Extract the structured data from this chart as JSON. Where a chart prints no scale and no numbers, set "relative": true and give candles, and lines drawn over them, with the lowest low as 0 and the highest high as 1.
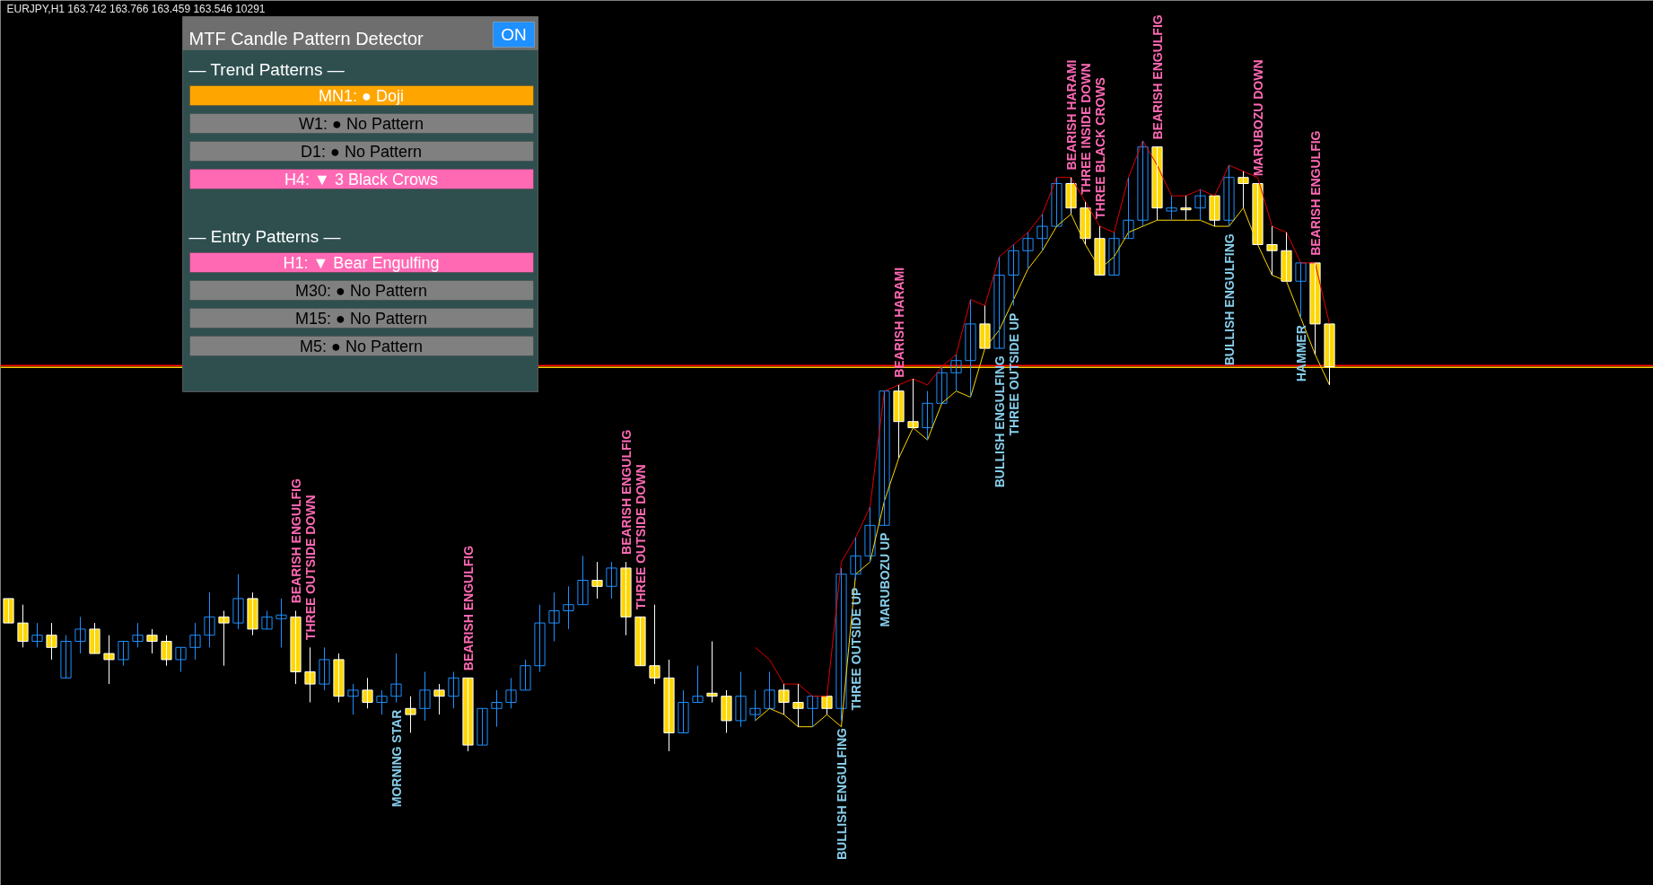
{
  "chart_data": [
    {
      "type": "candlestick",
      "title": "EURJPY,H1  163.742 163.766 163.459 163.546  10291",
      "relative": true,
      "categories": [
        null,
        null,
        null,
        null,
        null,
        null,
        null,
        null,
        null,
        null,
        null,
        null,
        null,
        null,
        null,
        null,
        null,
        null,
        null,
        null,
        null,
        null,
        null,
        null,
        null,
        null,
        null,
        null,
        null,
        null,
        null,
        null,
        null,
        null,
        null,
        null,
        null,
        null,
        null,
        null,
        null,
        null,
        null,
        null,
        null,
        null,
        null,
        null,
        null,
        null,
        null,
        null,
        null,
        null,
        null,
        null,
        null,
        null,
        null,
        null,
        null,
        null,
        null,
        null,
        null,
        null,
        null,
        null,
        null,
        null,
        null,
        null,
        null,
        null,
        null,
        null,
        null,
        null,
        null,
        null,
        null,
        null,
        null,
        null,
        null,
        null,
        null,
        null,
        null,
        null,
        null,
        null,
        null
      ],
      "colors": [
        "#ffd700",
        "#ffd700",
        "#1e90ff",
        "#ffd700",
        "#1e90ff",
        "#1e90ff",
        "#ffd700",
        "#ffd700",
        "#1e90ff",
        "#1e90ff",
        "#ffd700",
        "#ffd700",
        "#1e90ff",
        "#1e90ff",
        "#1e90ff",
        "#ffd700",
        "#1e90ff",
        "#ffd700",
        "#1e90ff",
        "#1e90ff",
        "#ffd700",
        "#ffd700",
        "#1e90ff",
        "#ffd700",
        "#1e90ff",
        "#ffd700",
        "#1e90ff",
        "#1e90ff",
        "#ffd700",
        "#1e90ff",
        "#ffd700",
        "#1e90ff",
        "#ffd700",
        "#1e90ff",
        "#1e90ff",
        "#1e90ff",
        "#1e90ff",
        "#1e90ff",
        "#1e90ff",
        "#1e90ff",
        "#1e90ff",
        "#ffd700",
        "#1e90ff",
        "#ffd700",
        "#ffd700",
        "#ffd700",
        "#ffd700",
        "#1e90ff",
        "#1e90ff",
        "#ffd700",
        "#ffd700",
        "#1e90ff",
        "#1e90ff",
        "#1e90ff",
        "#ffd700",
        "#ffd700",
        "#1e90ff",
        "#ffd700",
        "#1e90ff",
        "#1e90ff",
        "#1e90ff",
        "#1e90ff",
        "#ffd700",
        "#ffd700",
        "#1e90ff",
        "#1e90ff",
        "#1e90ff",
        "#1e90ff",
        "#ffd700",
        "#1e90ff",
        "#1e90ff",
        "#1e90ff",
        "#1e90ff",
        "#1e90ff",
        "#ffd700",
        "#ffd700",
        "#ffd700",
        "#1e90ff",
        "#1e90ff",
        "#1e90ff",
        "#ffd700",
        "#1e90ff",
        "#ffd700",
        "#1e90ff",
        "#ffd700",
        "#1e90ff",
        "#ffd700",
        "#ffd700",
        "#ffd700",
        "#ffd700",
        "#1e90ff",
        "#ffd700",
        "#ffd700"
      ],
      "ohlc": [
        [
          0.25,
          0.25,
          0.21,
          0.21
        ],
        [
          0.21,
          0.24,
          0.17,
          0.18
        ],
        [
          0.18,
          0.21,
          0.17,
          0.19
        ],
        [
          0.19,
          0.21,
          0.15,
          0.17
        ],
        [
          0.12,
          0.19,
          0.12,
          0.18
        ],
        [
          0.18,
          0.22,
          0.16,
          0.2
        ],
        [
          0.2,
          0.21,
          0.16,
          0.16
        ],
        [
          0.16,
          0.19,
          0.11,
          0.15
        ],
        [
          0.15,
          0.18,
          0.14,
          0.18
        ],
        [
          0.18,
          0.21,
          0.17,
          0.19
        ],
        [
          0.19,
          0.2,
          0.16,
          0.18
        ],
        [
          0.18,
          0.19,
          0.14,
          0.15
        ],
        [
          0.15,
          0.17,
          0.13,
          0.17
        ],
        [
          0.17,
          0.21,
          0.15,
          0.19
        ],
        [
          0.19,
          0.26,
          0.17,
          0.22
        ],
        [
          0.22,
          0.23,
          0.14,
          0.21
        ],
        [
          0.21,
          0.29,
          0.2,
          0.25
        ],
        [
          0.25,
          0.26,
          0.19,
          0.2
        ],
        [
          0.2,
          0.23,
          0.2,
          0.22
        ],
        [
          0.217,
          0.25,
          0.17,
          0.223
        ],
        [
          0.22,
          0.23,
          0.11,
          0.13
        ],
        [
          0.13,
          0.17,
          0.08,
          0.11
        ],
        [
          0.11,
          0.17,
          0.1,
          0.15
        ],
        [
          0.15,
          0.16,
          0.08,
          0.09
        ],
        [
          0.09,
          0.11,
          0.06,
          0.1
        ],
        [
          0.1,
          0.12,
          0.07,
          0.08
        ],
        [
          0.08,
          0.1,
          0.06,
          0.09
        ],
        [
          0.09,
          0.16,
          0.08,
          0.11
        ],
        [
          0.07,
          0.09,
          0.03,
          0.06
        ],
        [
          0.07,
          0.13,
          0.05,
          0.1
        ],
        [
          0.1,
          0.11,
          0.06,
          0.09
        ],
        [
          0.09,
          0.13,
          0.07,
          0.12
        ],
        [
          0.12,
          0.12,
          0.0,
          0.01
        ],
        [
          0.01,
          0.07,
          0.01,
          0.07
        ],
        [
          0.07,
          0.1,
          0.04,
          0.08
        ],
        [
          0.08,
          0.12,
          0.07,
          0.1
        ],
        [
          0.1,
          0.15,
          0.1,
          0.14
        ],
        [
          0.14,
          0.24,
          0.13,
          0.21
        ],
        [
          0.21,
          0.26,
          0.18,
          0.23
        ],
        [
          0.23,
          0.27,
          0.2,
          0.24
        ],
        [
          0.24,
          0.32,
          0.24,
          0.28
        ],
        [
          0.28,
          0.31,
          0.25,
          0.27
        ],
        [
          0.27,
          0.31,
          0.25,
          0.3
        ],
        [
          0.3,
          0.31,
          0.19,
          0.22
        ],
        [
          0.22,
          0.22,
          0.14,
          0.14
        ],
        [
          0.14,
          0.24,
          0.11,
          0.12
        ],
        [
          0.12,
          0.15,
          0.0,
          0.03
        ],
        [
          0.03,
          0.1,
          0.03,
          0.08
        ],
        [
          0.08,
          0.14,
          0.08,
          0.09
        ],
        [
          0.095,
          0.18,
          0.08,
          0.09
        ],
        [
          0.09,
          0.1,
          0.03,
          0.05
        ],
        [
          0.05,
          0.13,
          0.04,
          0.09
        ],
        [
          0.06,
          0.1,
          0.05,
          0.07
        ],
        [
          0.07,
          0.13,
          0.07,
          0.1
        ],
        [
          0.1,
          0.11,
          0.06,
          0.08
        ],
        [
          0.08,
          0.11,
          0.04,
          0.07
        ],
        [
          0.07,
          0.09,
          0.04,
          0.09
        ],
        [
          0.09,
          0.09,
          0.06,
          0.07
        ],
        [
          0.07,
          0.3,
          0.05,
          0.29
        ],
        [
          0.29,
          0.35,
          0.28,
          0.32
        ],
        [
          0.32,
          0.4,
          0.31,
          0.37
        ],
        [
          0.37,
          0.59,
          0.37,
          0.59
        ],
        [
          0.59,
          0.6,
          0.48,
          0.54
        ],
        [
          0.54,
          0.61,
          0.53,
          0.53
        ],
        [
          0.53,
          0.59,
          0.51,
          0.57
        ],
        [
          0.57,
          0.63,
          0.57,
          0.62
        ],
        [
          0.62,
          0.65,
          0.59,
          0.64
        ],
        [
          0.64,
          0.74,
          0.58,
          0.7
        ],
        [
          0.7,
          0.73,
          0.66,
          0.66
        ],
        [
          0.66,
          0.81,
          0.66,
          0.78
        ],
        [
          0.78,
          0.83,
          0.73,
          0.82
        ],
        [
          0.82,
          0.85,
          0.79,
          0.84
        ],
        [
          0.84,
          0.88,
          0.82,
          0.86
        ],
        [
          0.86,
          0.94,
          0.86,
          0.93
        ],
        [
          0.93,
          0.94,
          0.88,
          0.89
        ],
        [
          0.89,
          0.9,
          0.83,
          0.84
        ],
        [
          0.84,
          0.86,
          0.78,
          0.78
        ],
        [
          0.78,
          0.85,
          0.78,
          0.84
        ],
        [
          0.84,
          0.94,
          0.84,
          0.87
        ],
        [
          0.87,
          1.0,
          0.86,
          0.99
        ],
        [
          0.99,
          0.99,
          0.87,
          0.89
        ],
        [
          0.885,
          0.91,
          0.87,
          0.89
        ],
        [
          0.89,
          0.91,
          0.87,
          0.887
        ],
        [
          0.89,
          0.92,
          0.87,
          0.91
        ],
        [
          0.91,
          0.91,
          0.86,
          0.87
        ],
        [
          0.87,
          0.96,
          0.86,
          0.94
        ],
        [
          0.94,
          0.95,
          0.89,
          0.93
        ],
        [
          0.93,
          0.93,
          0.83,
          0.83
        ],
        [
          0.83,
          0.86,
          0.78,
          0.82
        ],
        [
          0.82,
          0.85,
          0.77,
          0.77
        ],
        [
          0.77,
          0.8,
          0.71,
          0.8
        ],
        [
          0.8,
          0.8,
          0.65,
          0.7
        ],
        [
          0.7,
          0.7,
          0.6,
          0.63
        ]
      ],
      "value_labels": [
        null,
        null,
        null,
        null,
        null,
        null,
        null,
        null,
        null,
        null,
        null,
        null,
        null,
        null,
        null,
        null,
        null,
        null,
        null,
        null,
        "BEARISH ENGULFIG",
        "THREE OUTSIDE DOWN",
        null,
        null,
        null,
        null,
        null,
        "MORNING STAR",
        null,
        null,
        null,
        null,
        "BEARISH ENGULFIG",
        null,
        null,
        null,
        null,
        null,
        null,
        null,
        null,
        null,
        null,
        "BEARISH ENGULFIG",
        "THREE OUTSIDE DOWN",
        null,
        null,
        null,
        null,
        null,
        null,
        null,
        null,
        null,
        null,
        null,
        null,
        null,
        "BULLISH ENGULFING",
        "THREE OUTSIDE UP",
        null,
        "MARUBOZU UP",
        "BEARISH HARAMI",
        null,
        null,
        null,
        null,
        null,
        null,
        "BULLISH ENGULFING",
        "THREE OUTSIDE UP",
        null,
        null,
        null,
        "BEARISH HARAMI",
        "THREE INSIDE DOWN",
        "THREE BLACK CROWS",
        null,
        null,
        null,
        "BEARISH ENGULFIG",
        null,
        null,
        null,
        null,
        "BULLISH ENGULFING",
        null,
        "MARUBOZU DOWN",
        null,
        null,
        "HAMMER",
        "BEARISH ENGULFIG",
        null
      ],
      "series": [
        {
          "type": "line",
          "color": "#e00000",
          "values": [
            null,
            null,
            null,
            null,
            null,
            null,
            null,
            null,
            null,
            null,
            null,
            null,
            null,
            null,
            null,
            null,
            null,
            null,
            null,
            null,
            null,
            null,
            null,
            null,
            null,
            null,
            null,
            null,
            null,
            null,
            null,
            null,
            null,
            null,
            null,
            null,
            null,
            null,
            null,
            null,
            null,
            null,
            null,
            null,
            null,
            null,
            null,
            null,
            null,
            null,
            null,
            null,
            0.17,
            0.15,
            0.11,
            0.11,
            0.09,
            0.09,
            0.31,
            0.35,
            0.4,
            0.59,
            0.6,
            0.61,
            0.6,
            0.63,
            0.65,
            0.74,
            0.73,
            0.81,
            0.83,
            0.85,
            0.88,
            0.94,
            0.94,
            0.9,
            0.86,
            0.85,
            0.94,
            1.0,
            0.96,
            0.91,
            0.91,
            0.92,
            0.91,
            0.96,
            0.95,
            0.94,
            0.86,
            0.85,
            0.8,
            0.8,
            0.7
          ]
        },
        {
          "type": "line",
          "color": "#ffd700",
          "values": [
            null,
            null,
            null,
            null,
            null,
            null,
            null,
            null,
            null,
            null,
            null,
            null,
            null,
            null,
            null,
            null,
            null,
            null,
            null,
            null,
            null,
            null,
            null,
            null,
            null,
            null,
            null,
            null,
            null,
            null,
            null,
            null,
            null,
            null,
            null,
            null,
            null,
            null,
            null,
            null,
            null,
            null,
            null,
            null,
            null,
            null,
            null,
            null,
            null,
            null,
            null,
            null,
            0.05,
            0.07,
            0.06,
            0.04,
            0.04,
            0.06,
            0.04,
            0.29,
            0.31,
            0.41,
            0.48,
            0.53,
            0.51,
            0.57,
            0.59,
            0.58,
            0.66,
            0.69,
            0.74,
            0.79,
            0.82,
            0.86,
            0.88,
            0.83,
            0.79,
            0.81,
            0.85,
            0.86,
            0.87,
            0.87,
            0.87,
            0.87,
            0.86,
            0.86,
            0.89,
            0.83,
            0.78,
            0.77,
            0.71,
            0.65,
            0.6
          ]
        }
      ],
      "ref_lines": [
        {
          "axis": "y",
          "value": 0.632,
          "color": "#ff0000"
        },
        {
          "axis": "y",
          "value": 0.629,
          "color": "#ffcc00"
        }
      ]
    },
    {
      "type": "other",
      "title": "MTF Candle Pattern Detector",
      "annotations": [
        "ON",
        "— Trend Patterns —",
        "MN1: ● Doji",
        "W1: ● No Pattern",
        "D1: ● No Pattern",
        "H4: ▼ 3 Black Crows",
        "— Entry Patterns —",
        "H1: ▼ Bear Engulfing",
        "M30: ● No Pattern",
        "M15: ● No Pattern",
        "M5: ● No Pattern"
      ],
      "colors": [
        "#1e90ff",
        null,
        "#ffa500",
        "#808080",
        "#808080",
        "#ff69b4",
        null,
        "#ff69b4",
        "#808080",
        "#808080",
        "#808080"
      ]
    }
  ]
}
